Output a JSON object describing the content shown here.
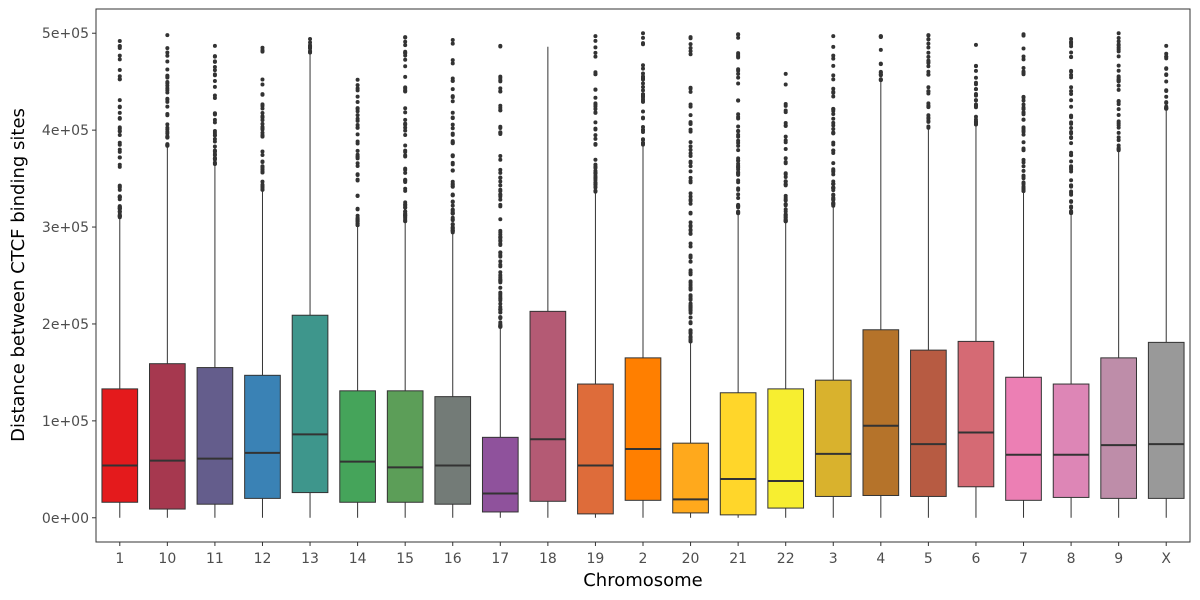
{
  "chart_data": {
    "type": "boxplot",
    "xlabel": "Chromosome",
    "ylabel": "Distance between CTCF binding sites",
    "ylim": [
      -25000,
      525000
    ],
    "yticks": [
      0,
      100000,
      200000,
      300000,
      400000,
      500000
    ],
    "ytick_labels": [
      "0e+00",
      "1e+05",
      "2e+05",
      "3e+05",
      "4e+05",
      "5e+05"
    ],
    "categories": [
      "1",
      "10",
      "11",
      "12",
      "13",
      "14",
      "15",
      "16",
      "17",
      "18",
      "19",
      "2",
      "20",
      "21",
      "22",
      "3",
      "4",
      "5",
      "6",
      "7",
      "8",
      "9",
      "X"
    ],
    "boxes": [
      {
        "min": 0,
        "q1": 16000,
        "median": 54000,
        "q3": 133000,
        "whisker_high": 310000,
        "outlier_max": 492000,
        "color": "#e41a1c"
      },
      {
        "min": 0,
        "q1": 9000,
        "median": 59000,
        "q3": 159000,
        "whisker_high": 383000,
        "outlier_max": 498000,
        "color": "#a6384f"
      },
      {
        "min": 0,
        "q1": 14000,
        "median": 61000,
        "q3": 155000,
        "whisker_high": 365000,
        "outlier_max": 487000,
        "color": "#645d8c"
      },
      {
        "min": 0,
        "q1": 20000,
        "median": 67000,
        "q3": 147000,
        "whisker_high": 337000,
        "outlier_max": 485000,
        "color": "#3a82b5"
      },
      {
        "min": 0,
        "q1": 26000,
        "median": 86000,
        "q3": 209000,
        "whisker_high": 480000,
        "outlier_max": 494000,
        "color": "#3e968c"
      },
      {
        "min": 0,
        "q1": 16000,
        "median": 58000,
        "q3": 131000,
        "whisker_high": 302000,
        "outlier_max": 452000,
        "color": "#45a45a"
      },
      {
        "min": 0,
        "q1": 16000,
        "median": 52000,
        "q3": 131000,
        "whisker_high": 306000,
        "outlier_max": 496000,
        "color": "#5c9e58"
      },
      {
        "min": 0,
        "q1": 14000,
        "median": 54000,
        "q3": 125000,
        "whisker_high": 293000,
        "outlier_max": 493000,
        "color": "#737b77"
      },
      {
        "min": 0,
        "q1": 6000,
        "median": 25000,
        "q3": 83000,
        "whisker_high": 197000,
        "outlier_max": 487000,
        "color": "#8f529c"
      },
      {
        "min": 0,
        "q1": 17000,
        "median": 81000,
        "q3": 213000,
        "whisker_high": 486000,
        "outlier_max": 486000,
        "color": "#b45a74"
      },
      {
        "min": 0,
        "q1": 4000,
        "median": 54000,
        "q3": 138000,
        "whisker_high": 336000,
        "outlier_max": 497000,
        "color": "#de6c3a"
      },
      {
        "min": 0,
        "q1": 18000,
        "median": 71000,
        "q3": 165000,
        "whisker_high": 385000,
        "outlier_max": 500000,
        "color": "#ff7f00"
      },
      {
        "min": 0,
        "q1": 5000,
        "median": 19000,
        "q3": 77000,
        "whisker_high": 182000,
        "outlier_max": 496000,
        "color": "#ffa91c"
      },
      {
        "min": 0,
        "q1": 3000,
        "median": 40000,
        "q3": 129000,
        "whisker_high": 314000,
        "outlier_max": 499000,
        "color": "#ffd62a"
      },
      {
        "min": 0,
        "q1": 10000,
        "median": 38000,
        "q3": 133000,
        "whisker_high": 306000,
        "outlier_max": 458000,
        "color": "#f7ee30"
      },
      {
        "min": 0,
        "q1": 22000,
        "median": 66000,
        "q3": 142000,
        "whisker_high": 322000,
        "outlier_max": 497000,
        "color": "#d9b22d"
      },
      {
        "min": 0,
        "q1": 23000,
        "median": 95000,
        "q3": 194000,
        "whisker_high": 451000,
        "outlier_max": 497000,
        "color": "#b5732a"
      },
      {
        "min": 0,
        "q1": 22000,
        "median": 76000,
        "q3": 173000,
        "whisker_high": 401000,
        "outlier_max": 498000,
        "color": "#b75b42"
      },
      {
        "min": 0,
        "q1": 32000,
        "median": 88000,
        "q3": 182000,
        "whisker_high": 405000,
        "outlier_max": 488000,
        "color": "#d56a74"
      },
      {
        "min": 0,
        "q1": 18000,
        "median": 65000,
        "q3": 145000,
        "whisker_high": 337000,
        "outlier_max": 499000,
        "color": "#ec7fb4"
      },
      {
        "min": 0,
        "q1": 21000,
        "median": 65000,
        "q3": 138000,
        "whisker_high": 314000,
        "outlier_max": 494000,
        "color": "#dd86b6"
      },
      {
        "min": 0,
        "q1": 20000,
        "median": 75000,
        "q3": 165000,
        "whisker_high": 379000,
        "outlier_max": 500000,
        "color": "#be8da9"
      },
      {
        "min": 0,
        "q1": 20000,
        "median": 76000,
        "q3": 181000,
        "whisker_high": 422000,
        "outlier_max": 487000,
        "color": "#999999"
      }
    ]
  }
}
